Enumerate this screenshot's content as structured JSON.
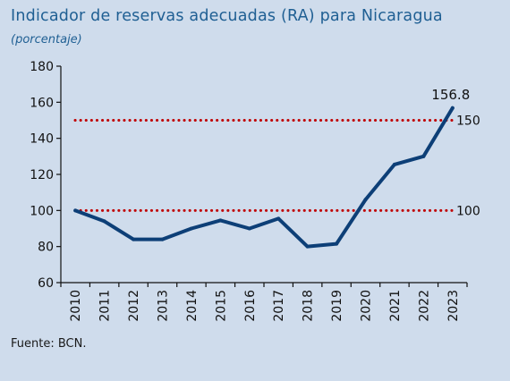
{
  "chart_data": {
    "type": "line",
    "title": "Indicador de reservas adecuadas (RA) para Nicaragua",
    "subtitle": "(porcentaje)",
    "source": "Fuente: BCN.",
    "categories": [
      "2010",
      "2011",
      "2012",
      "2013",
      "2014",
      "2015",
      "2016",
      "2017",
      "2018",
      "2019",
      "2020",
      "2021",
      "2022",
      "2023"
    ],
    "series": [
      {
        "values": [
          100,
          94,
          84,
          84,
          90,
          94.5,
          90,
          95.5,
          80,
          81.5,
          106,
          125.5,
          130,
          156.8
        ],
        "color": "#0d3f77"
      }
    ],
    "reference_lines": [
      {
        "value": 150,
        "label": "150",
        "color": "#c00000"
      },
      {
        "value": 100,
        "label": "100",
        "color": "#c00000"
      }
    ],
    "data_labels": [
      {
        "category": "2023",
        "text": "156.8"
      }
    ],
    "ylim": [
      60,
      180
    ],
    "yticks": [
      "60",
      "80",
      "100",
      "120",
      "140",
      "160",
      "180"
    ],
    "xlabel": "",
    "ylabel": "",
    "grid": false,
    "legend": "none"
  }
}
